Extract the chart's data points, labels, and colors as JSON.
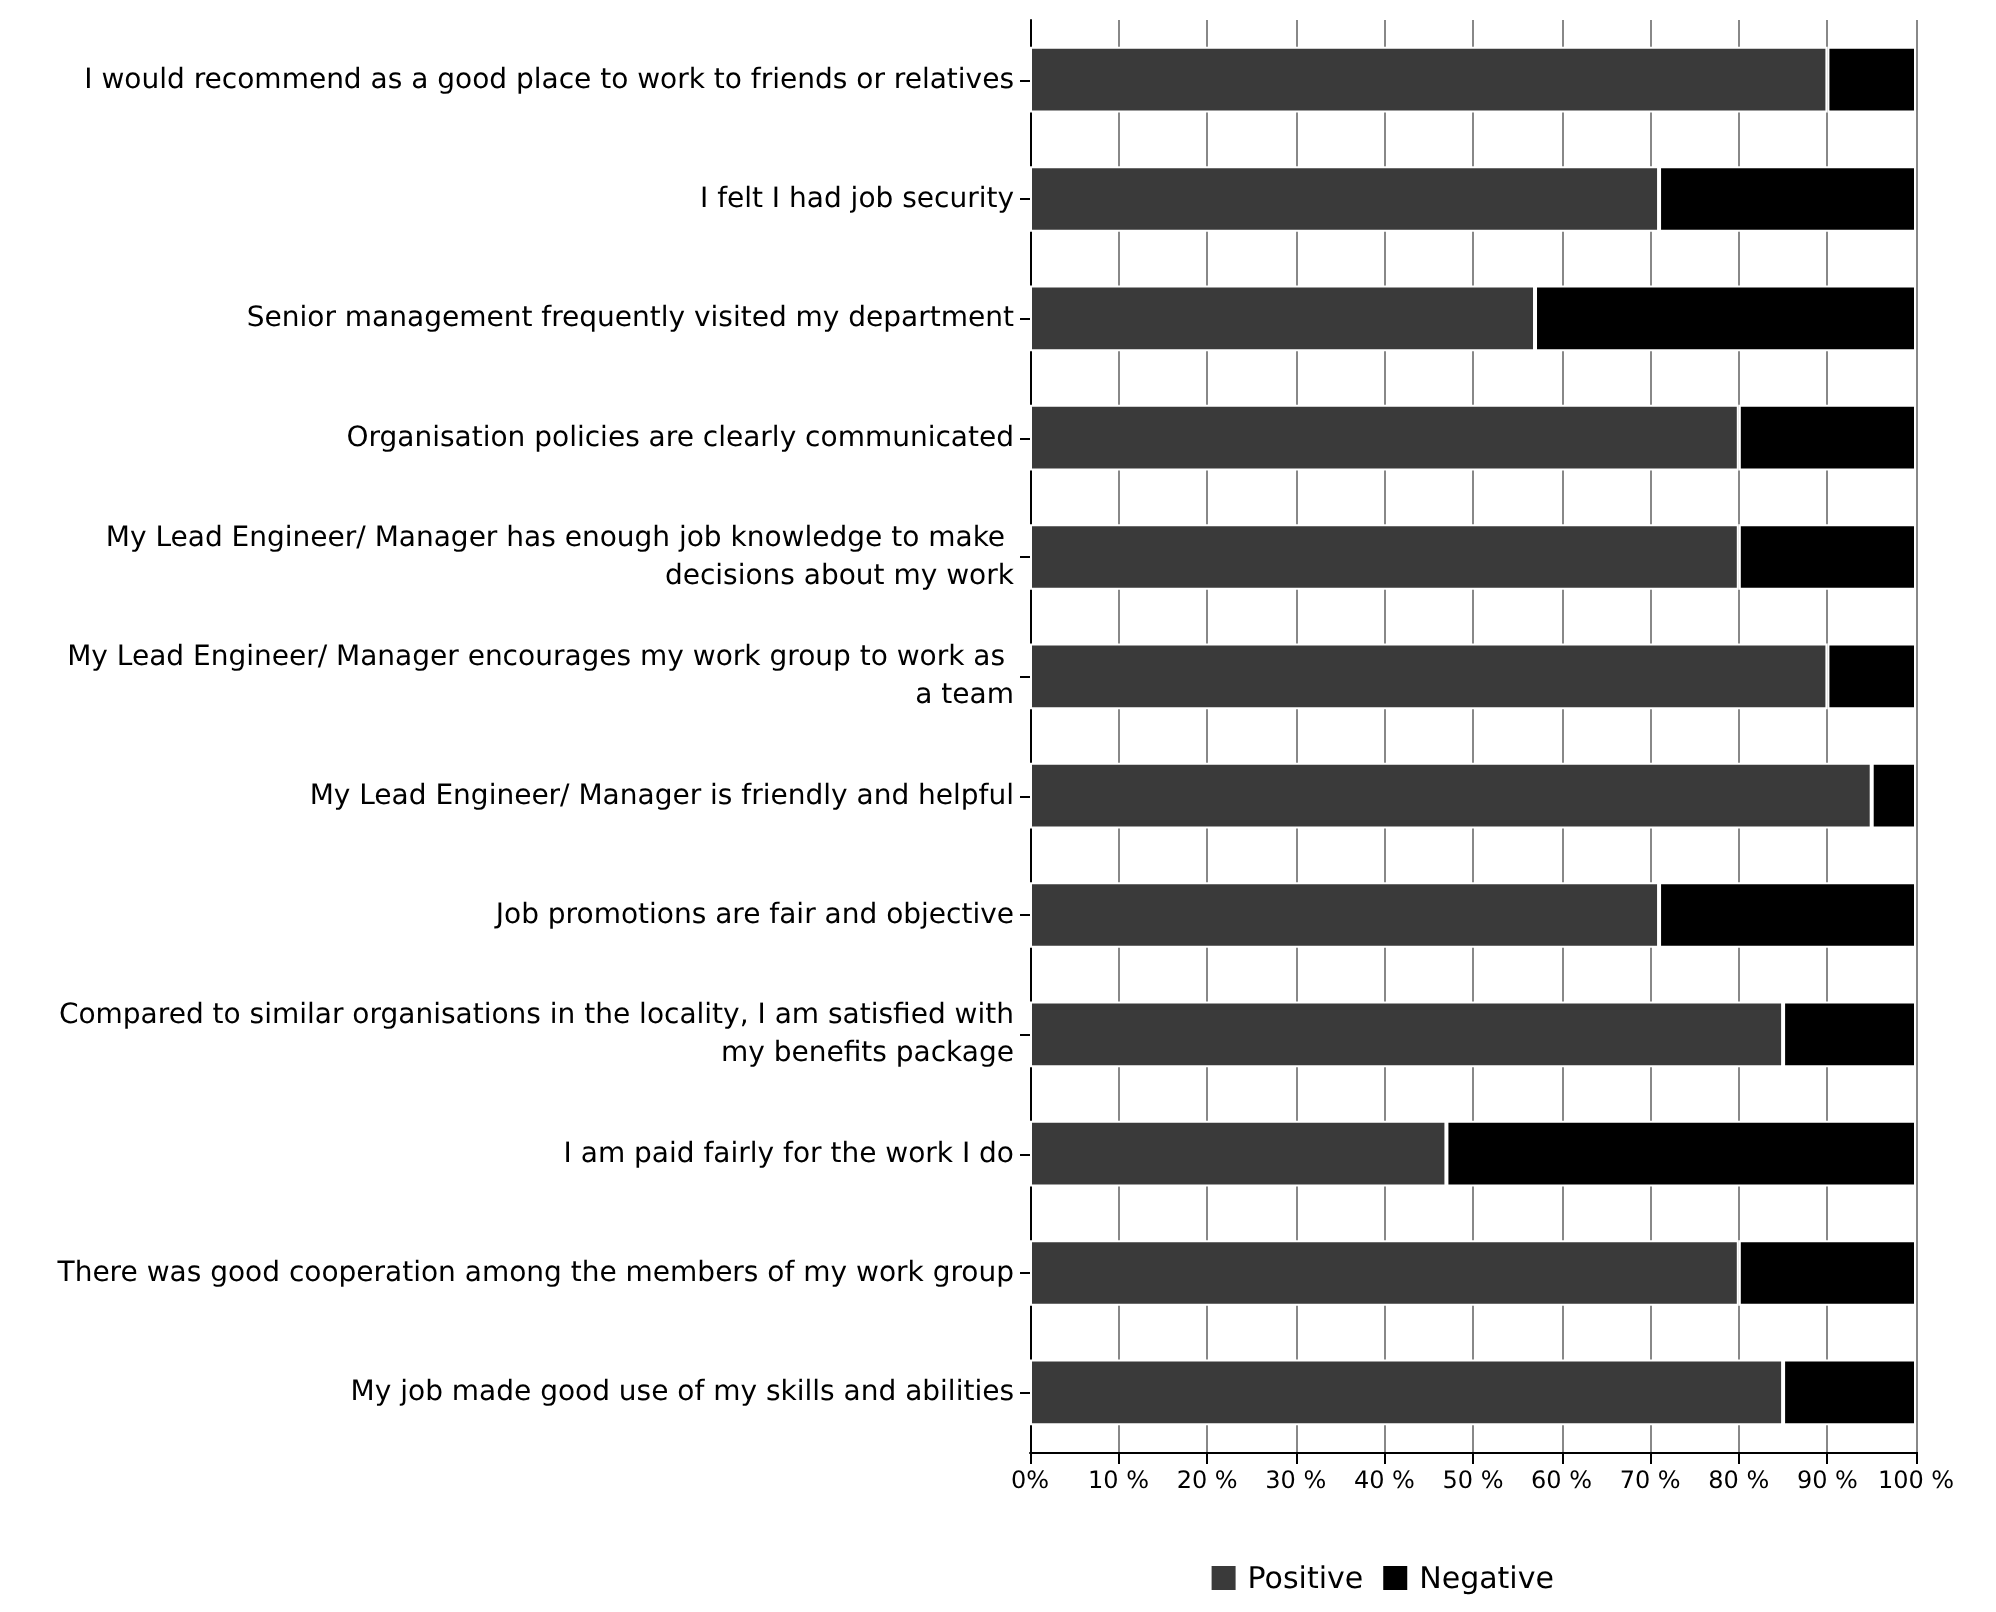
{
  "chart_data": {
    "type": "bar",
    "orientation": "horizontal",
    "stacked": true,
    "categories": [
      "I would recommend as a good place to work to friends or relatives",
      "I felt I had job security",
      "Senior management frequently visited my department",
      "Organisation policies are clearly communicated",
      "My Lead Engineer/ Manager has enough job knowledge to make decisions about my work",
      "My Lead Engineer/ Manager encourages my work group to work as a team",
      "My Lead Engineer/ Manager is friendly and helpful",
      "Job promotions are fair and objective",
      "Compared to similar organisations in the locality, I am satisfied with my benefits package",
      "I am paid fairly for the work I do",
      "There was good cooperation among the members of my work group",
      "My job made good use of my skills and abilities"
    ],
    "series": [
      {
        "name": "Positive",
        "color": "#3a3a3a",
        "values": [
          90,
          71,
          57,
          80,
          80,
          90,
          95,
          71,
          85,
          47,
          80,
          85
        ]
      },
      {
        "name": "Negative",
        "color": "#000000",
        "values": [
          10,
          29,
          43,
          20,
          20,
          10,
          5,
          29,
          15,
          53,
          20,
          15
        ]
      }
    ],
    "xlim": [
      0,
      100
    ],
    "xticks": [
      {
        "value": 0,
        "label": "0%"
      },
      {
        "value": 10,
        "label": "10 %"
      },
      {
        "value": 20,
        "label": "20 %"
      },
      {
        "value": 30,
        "label": "30 %"
      },
      {
        "value": 40,
        "label": "40 %"
      },
      {
        "value": 50,
        "label": "50 %"
      },
      {
        "value": 60,
        "label": "60 %"
      },
      {
        "value": 70,
        "label": "70 %"
      },
      {
        "value": 80,
        "label": "80 %"
      },
      {
        "value": 90,
        "label": "90 %"
      },
      {
        "value": 100,
        "label": "100 %"
      }
    ],
    "grid": "x",
    "legend": "bottom"
  }
}
